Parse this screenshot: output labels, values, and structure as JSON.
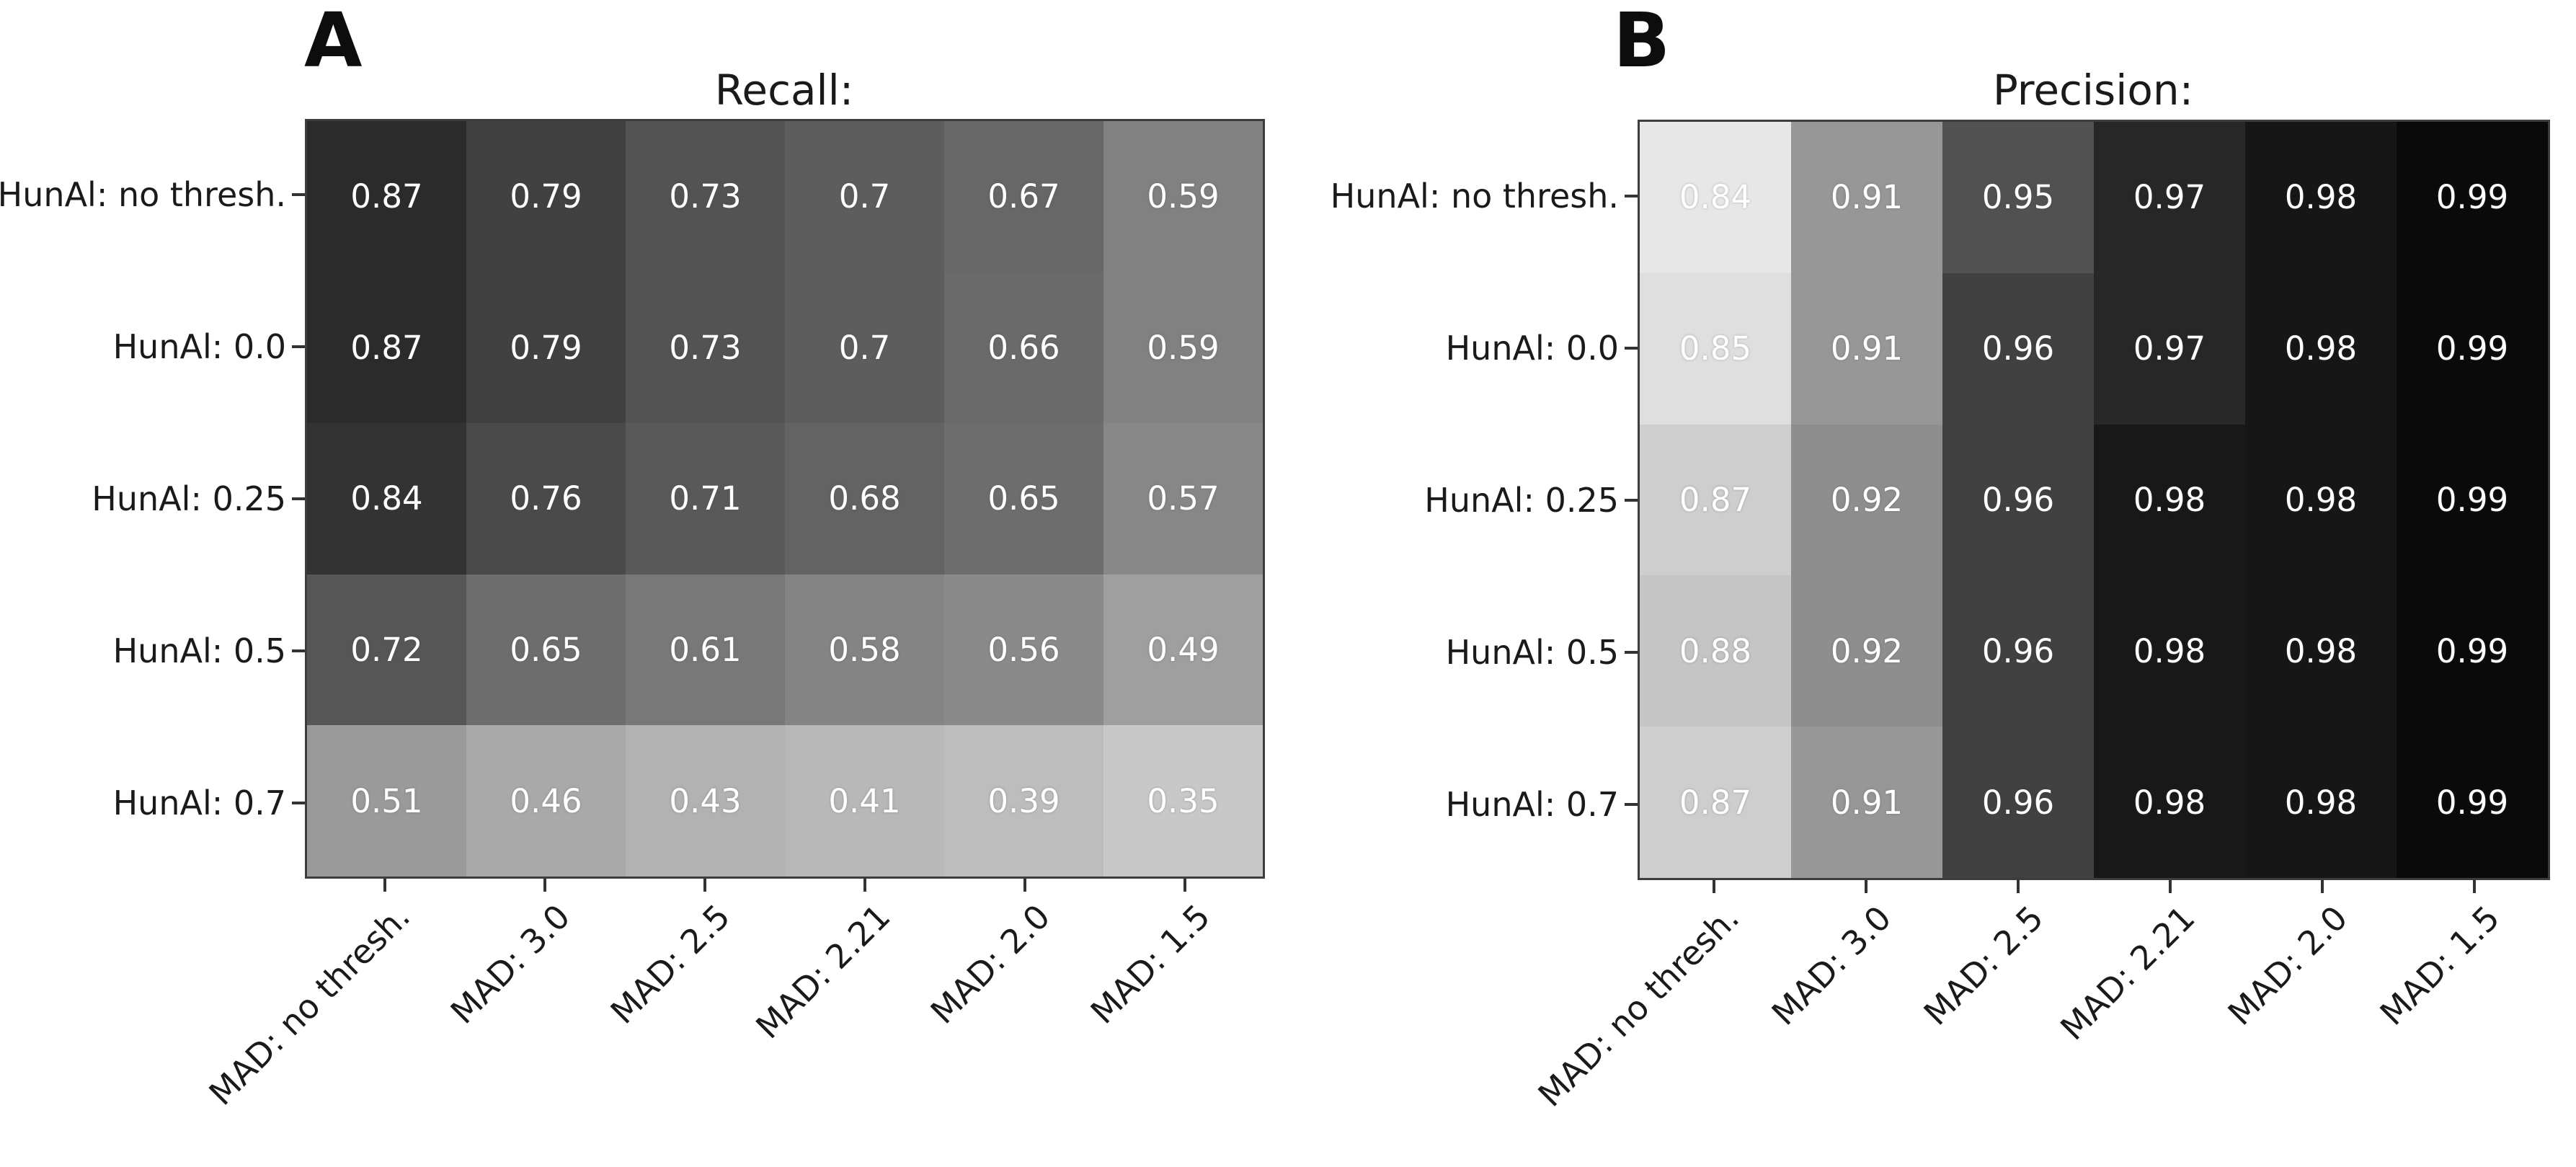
{
  "figure": {
    "background": "#ffffff",
    "label_color": "#1a1a1a",
    "cell_text_color": "#ffffff",
    "spine_color": "#3d3d3d"
  },
  "chart_data": [
    {
      "type": "heatmap",
      "panel_label": "A",
      "title": "Recall:",
      "rows": [
        "HunAl: no thresh.",
        "HunAl: 0.0",
        "HunAl: 0.25",
        "HunAl: 0.5",
        "HunAl: 0.7"
      ],
      "columns": [
        "MAD: no thresh.",
        "MAD: 3.0",
        "MAD: 2.5",
        "MAD: 2.21",
        "MAD: 2.0",
        "MAD: 1.5"
      ],
      "values": [
        [
          0.87,
          0.79,
          0.73,
          0.7,
          0.67,
          0.59
        ],
        [
          0.87,
          0.79,
          0.73,
          0.7,
          0.66,
          0.59
        ],
        [
          0.84,
          0.76,
          0.71,
          0.68,
          0.65,
          0.57
        ],
        [
          0.72,
          0.65,
          0.61,
          0.58,
          0.56,
          0.49
        ],
        [
          0.51,
          0.46,
          0.43,
          0.41,
          0.39,
          0.35
        ]
      ],
      "cell_colors": [
        [
          "#2b2b2b",
          "#414141",
          "#535353",
          "#5d5d5d",
          "#676767",
          "#818181"
        ],
        [
          "#2b2b2b",
          "#414141",
          "#535353",
          "#5d5d5d",
          "#6a6a6a",
          "#818181"
        ],
        [
          "#333333",
          "#4a4a4a",
          "#595959",
          "#636363",
          "#6d6d6d",
          "#878787"
        ],
        [
          "#565656",
          "#6d6d6d",
          "#787878",
          "#848484",
          "#8a8a8a",
          "#9f9f9f"
        ],
        [
          "#9a9a9a",
          "#a9a9a9",
          "#b2b2b2",
          "#b8b8b8",
          "#bdbdbd",
          "#c8c8c8"
        ]
      ],
      "colormap": "grayscale, darker = higher value",
      "grid": false,
      "legend": "none"
    },
    {
      "type": "heatmap",
      "panel_label": "B",
      "title": "Precision:",
      "rows": [
        "HunAl: no thresh.",
        "HunAl: 0.0",
        "HunAl: 0.25",
        "HunAl: 0.5",
        "HunAl: 0.7"
      ],
      "columns": [
        "MAD: no thresh.",
        "MAD: 3.0",
        "MAD: 2.5",
        "MAD: 2.21",
        "MAD: 2.0",
        "MAD: 1.5"
      ],
      "values": [
        [
          0.84,
          0.91,
          0.95,
          0.97,
          0.98,
          0.99
        ],
        [
          0.85,
          0.91,
          0.96,
          0.97,
          0.98,
          0.99
        ],
        [
          0.87,
          0.92,
          0.96,
          0.98,
          0.98,
          0.99
        ],
        [
          0.88,
          0.92,
          0.96,
          0.98,
          0.98,
          0.99
        ],
        [
          0.87,
          0.91,
          0.96,
          0.98,
          0.98,
          0.99
        ]
      ],
      "cell_colors": [
        [
          "#e7e7e7",
          "#979797",
          "#515151",
          "#272727",
          "#161616",
          "#0a0a0a"
        ],
        [
          "#dfdfdf",
          "#979797",
          "#414141",
          "#272727",
          "#161616",
          "#0a0a0a"
        ],
        [
          "#cecece",
          "#8e8e8e",
          "#414141",
          "#181818",
          "#161616",
          "#0a0a0a"
        ],
        [
          "#c5c5c5",
          "#8e8e8e",
          "#414141",
          "#181818",
          "#161616",
          "#0a0a0a"
        ],
        [
          "#cecece",
          "#979797",
          "#414141",
          "#181818",
          "#161616",
          "#0a0a0a"
        ]
      ],
      "colormap": "grayscale, darker = higher value",
      "grid": false,
      "legend": "none"
    }
  ]
}
